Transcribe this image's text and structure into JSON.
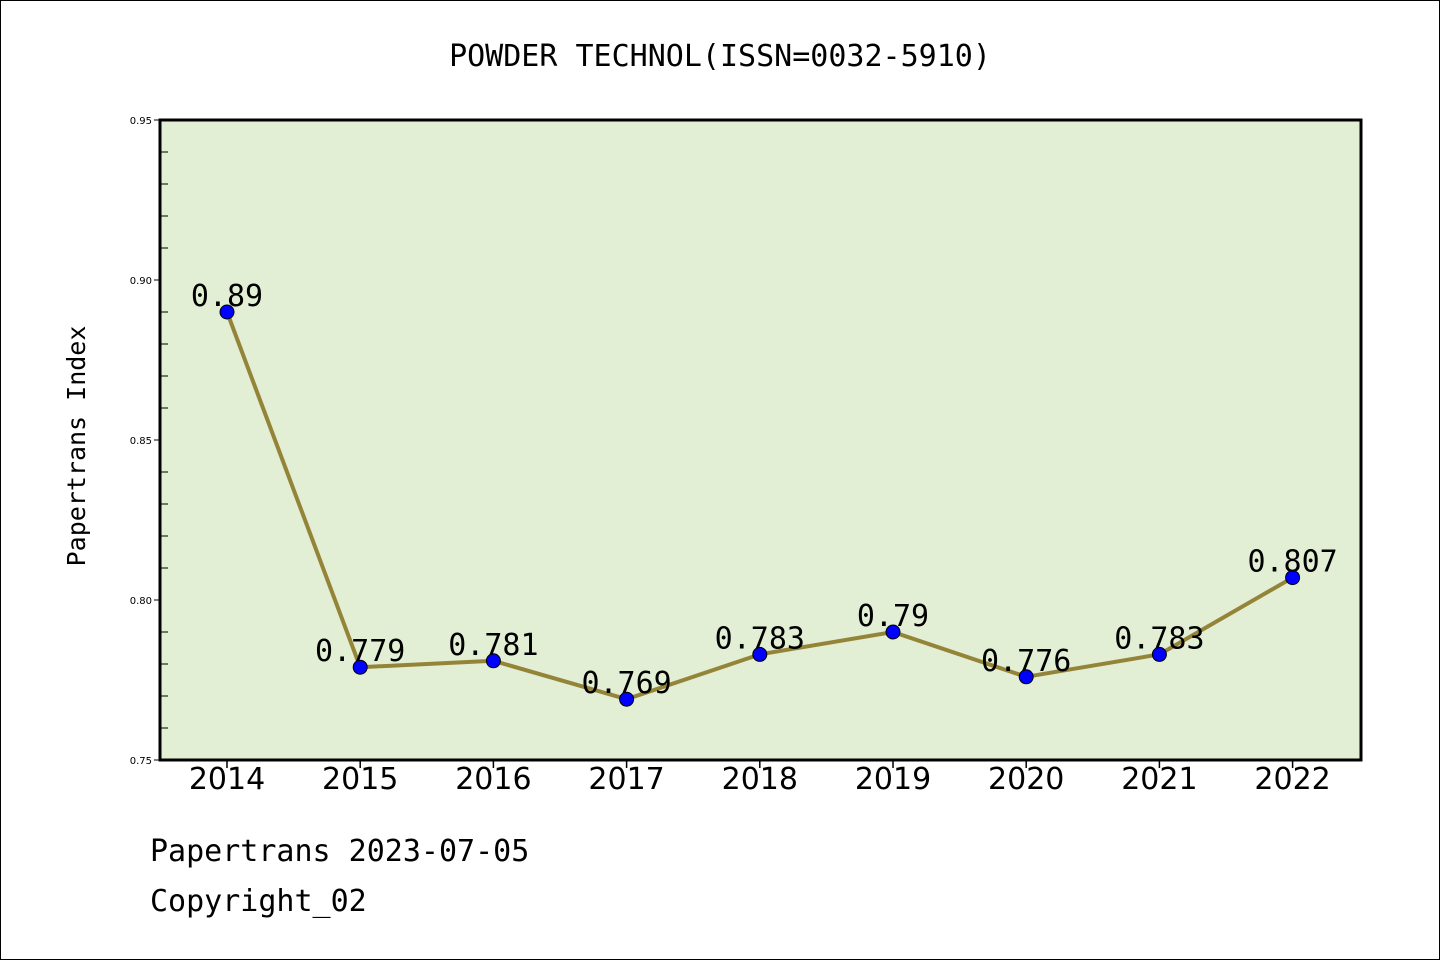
{
  "chart_data": {
    "type": "line",
    "title": "POWDER TECHNOL(ISSN=0032-5910)",
    "xlabel": "",
    "ylabel": "Papertrans Index",
    "categories": [
      "2014",
      "2015",
      "2016",
      "2017",
      "2018",
      "2019",
      "2020",
      "2021",
      "2022"
    ],
    "series": [
      {
        "values": [
          0.89,
          0.779,
          0.781,
          0.769,
          0.783,
          0.79,
          0.776,
          0.783,
          0.807
        ],
        "data_labels": [
          "0.89",
          "0.779",
          "0.781",
          "0.769",
          "0.783",
          "0.79",
          "0.776",
          "0.783",
          "0.807"
        ]
      }
    ],
    "ylim": [
      0.75,
      0.95
    ],
    "yticks": [
      0.75,
      0.8,
      0.85,
      0.9,
      0.95
    ],
    "ytick_labels": [
      "0.75",
      "0.80",
      "0.85",
      "0.90",
      "0.95"
    ],
    "grid": false,
    "legend": "none",
    "colors": {
      "plot_background": "#e2efd5",
      "line": "#948437",
      "marker": "#0000ff"
    }
  },
  "footer": {
    "line1": "Papertrans 2023-07-05",
    "line2": "Copyright_02"
  }
}
